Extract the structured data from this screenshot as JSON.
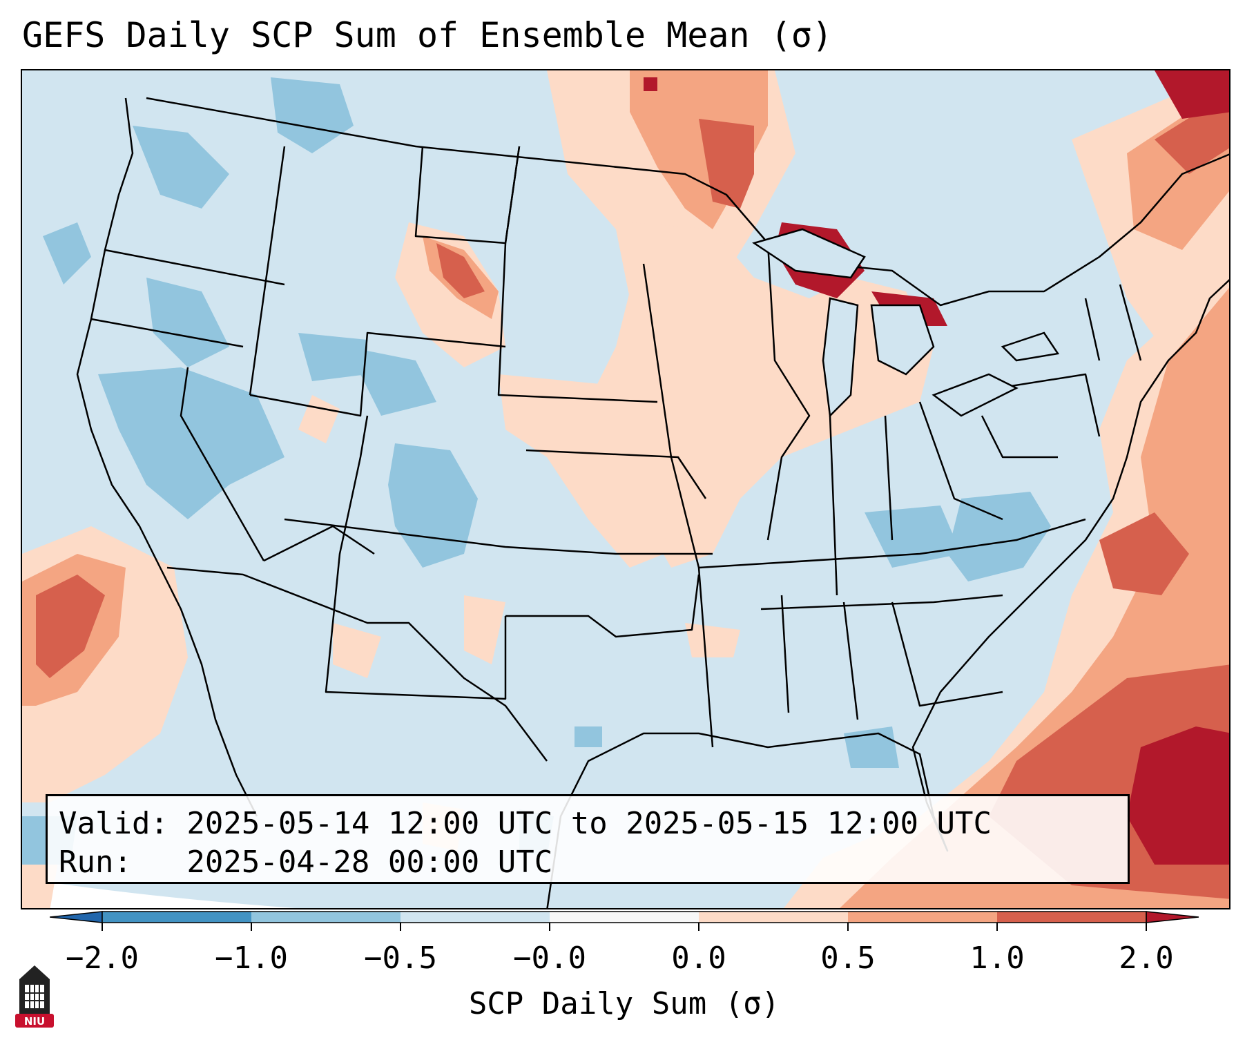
{
  "title": "GEFS Daily SCP Sum of Ensemble Mean (σ)",
  "info": {
    "valid_line": "Valid: 2025-05-14 12:00 UTC to 2025-05-15 12:00 UTC",
    "run_line": "Run:   2025-04-28 00:00 UTC"
  },
  "colorbar": {
    "label": "SCP Daily Sum (σ)",
    "ticks": [
      "−2.0",
      "−1.0",
      "−0.5",
      "−0.0",
      "0.0",
      "0.5",
      "1.0",
      "2.0"
    ],
    "bins": [
      {
        "range": "below −2.0",
        "color": "#2166ac"
      },
      {
        "range": "−2.0 to −1.0",
        "color": "#4393c3"
      },
      {
        "range": "−1.0 to −0.5",
        "color": "#92c5de"
      },
      {
        "range": "−0.5 to −0.0",
        "color": "#d1e5f0"
      },
      {
        "range": "−0.0 to 0.0",
        "color": "#f7f7f7"
      },
      {
        "range": "0.0 to 0.5",
        "color": "#fddbc7"
      },
      {
        "range": "0.5 to 1.0",
        "color": "#f4a582"
      },
      {
        "range": "1.0 to 2.0",
        "color": "#d6604d"
      },
      {
        "range": "above 2.0",
        "color": "#b2182b"
      }
    ]
  },
  "map": {
    "region": "Continental United States",
    "base_color": "#d1e5f0",
    "boundary_color": "#000000"
  },
  "logo": {
    "text": "NIU",
    "color": "#c8102e"
  }
}
